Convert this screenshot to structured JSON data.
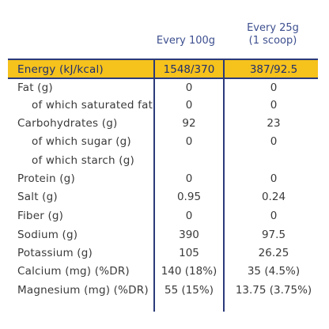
{
  "columns": {
    "per_100g": "Every 100g",
    "per_25g": "Every 25g\n(1 scoop)"
  },
  "rows": [
    {
      "label": "Energy (kJ/kcal)",
      "a": "1548/370",
      "b": "387/92.5"
    },
    {
      "label": "Fat (g)",
      "a": "0",
      "b": "0"
    },
    {
      "label": "of which saturated fat",
      "a": "0",
      "b": "0"
    },
    {
      "label": "Carbohydrates (g)",
      "a": "92",
      "b": "23"
    },
    {
      "label": "of which sugar (g)",
      "a": "0",
      "b": "0"
    },
    {
      "label": "of which starch (g)",
      "a": "",
      "b": ""
    },
    {
      "label": "Protein (g)",
      "a": "0",
      "b": "0"
    },
    {
      "label": "Salt (g)",
      "a": "0.95",
      "b": "0.24"
    },
    {
      "label": "Fiber (g)",
      "a": "0",
      "b": "0"
    },
    {
      "label": "Sodium (g)",
      "a": "390",
      "b": "97.5"
    },
    {
      "label": "Potassium (g)",
      "a": "105",
      "b": "26.25"
    },
    {
      "label": "Calcium (mg) (%DR)",
      "a": "140 (18%)",
      "b": "35 (4.5%)"
    },
    {
      "label": "Magnesium (mg) (%DR)",
      "a": "55 (15%)",
      "b": "13.75 (3.75%)"
    }
  ],
  "colors": {
    "highlight": "#f6c21c",
    "rule": "#2b3a7a",
    "header_text": "#3d4f8f"
  }
}
